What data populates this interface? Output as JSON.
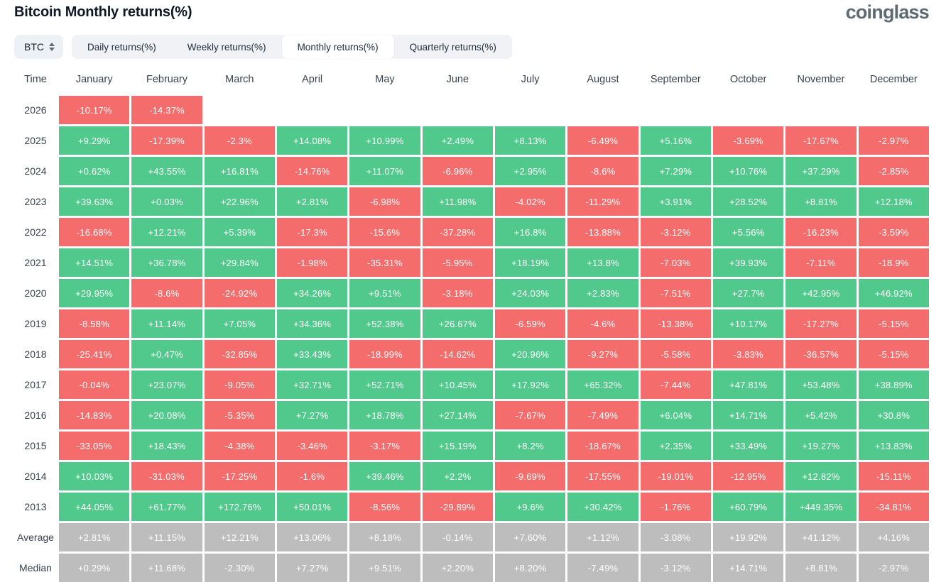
{
  "page": {
    "title": "Bitcoin Monthly returns(%)",
    "logo_text": "coinglass"
  },
  "controls": {
    "symbol_select": {
      "value": "BTC",
      "icon": "sort-arrows-icon"
    },
    "tabs": [
      {
        "label": "Daily returns(%)",
        "active": false
      },
      {
        "label": "Weekly returns(%)",
        "active": false
      },
      {
        "label": "Monthly returns(%)",
        "active": true
      },
      {
        "label": "Quarterly returns(%)",
        "active": false
      }
    ]
  },
  "chart_data": {
    "type": "heatmap",
    "title": "Bitcoin Monthly returns(%)",
    "row_header": "Time",
    "columns": [
      "January",
      "February",
      "March",
      "April",
      "May",
      "June",
      "July",
      "August",
      "September",
      "October",
      "November",
      "December"
    ],
    "rows": [
      {
        "label": "2026",
        "style": "signed",
        "values": [
          "-10.17%",
          "-14.37%",
          null,
          null,
          null,
          null,
          null,
          null,
          null,
          null,
          null,
          null
        ]
      },
      {
        "label": "2025",
        "style": "signed",
        "values": [
          "+9.29%",
          "-17.39%",
          "-2.3%",
          "+14.08%",
          "+10.99%",
          "+2.49%",
          "+8.13%",
          "-6.49%",
          "+5.16%",
          "-3.69%",
          "-17.67%",
          "-2.97%"
        ]
      },
      {
        "label": "2024",
        "style": "signed",
        "values": [
          "+0.62%",
          "+43.55%",
          "+16.81%",
          "-14.76%",
          "+11.07%",
          "-6.96%",
          "+2.95%",
          "-8.6%",
          "+7.29%",
          "+10.76%",
          "+37.29%",
          "-2.85%"
        ]
      },
      {
        "label": "2023",
        "style": "signed",
        "values": [
          "+39.63%",
          "+0.03%",
          "+22.96%",
          "+2.81%",
          "-6.98%",
          "+11.98%",
          "-4.02%",
          "-11.29%",
          "+3.91%",
          "+28.52%",
          "+8.81%",
          "+12.18%"
        ]
      },
      {
        "label": "2022",
        "style": "signed",
        "values": [
          "-16.68%",
          "+12.21%",
          "+5.39%",
          "-17.3%",
          "-15.6%",
          "-37.28%",
          "+16.8%",
          "-13.88%",
          "-3.12%",
          "+5.56%",
          "-16.23%",
          "-3.59%"
        ]
      },
      {
        "label": "2021",
        "style": "signed",
        "values": [
          "+14.51%",
          "+36.78%",
          "+29.84%",
          "-1.98%",
          "-35.31%",
          "-5.95%",
          "+18.19%",
          "+13.8%",
          "-7.03%",
          "+39.93%",
          "-7.11%",
          "-18.9%"
        ]
      },
      {
        "label": "2020",
        "style": "signed",
        "values": [
          "+29.95%",
          "-8.6%",
          "-24.92%",
          "+34.26%",
          "+9.51%",
          "-3.18%",
          "+24.03%",
          "+2.83%",
          "-7.51%",
          "+27.7%",
          "+42.95%",
          "+46.92%"
        ]
      },
      {
        "label": "2019",
        "style": "signed",
        "values": [
          "-8.58%",
          "+11.14%",
          "+7.05%",
          "+34.36%",
          "+52.38%",
          "+26.67%",
          "-6.59%",
          "-4.6%",
          "-13.38%",
          "+10.17%",
          "-17.27%",
          "-5.15%"
        ]
      },
      {
        "label": "2018",
        "style": "signed",
        "values": [
          "-25.41%",
          "+0.47%",
          "-32.85%",
          "+33.43%",
          "-18.99%",
          "-14.62%",
          "+20.96%",
          "-9.27%",
          "-5.58%",
          "-3.83%",
          "-36.57%",
          "-5.15%"
        ]
      },
      {
        "label": "2017",
        "style": "signed",
        "values": [
          "-0.04%",
          "+23.07%",
          "-9.05%",
          "+32.71%",
          "+52.71%",
          "+10.45%",
          "+17.92%",
          "+65.32%",
          "-7.44%",
          "+47.81%",
          "+53.48%",
          "+38.89%"
        ]
      },
      {
        "label": "2016",
        "style": "signed",
        "values": [
          "-14.83%",
          "+20.08%",
          "-5.35%",
          "+7.27%",
          "+18.78%",
          "+27.14%",
          "-7.67%",
          "-7.49%",
          "+6.04%",
          "+14.71%",
          "+5.42%",
          "+30.8%"
        ]
      },
      {
        "label": "2015",
        "style": "signed",
        "values": [
          "-33.05%",
          "+18.43%",
          "-4.38%",
          "-3.46%",
          "-3.17%",
          "+15.19%",
          "+8.2%",
          "-18.67%",
          "+2.35%",
          "+33.49%",
          "+19.27%",
          "+13.83%"
        ]
      },
      {
        "label": "2014",
        "style": "signed",
        "values": [
          "+10.03%",
          "-31.03%",
          "-17.25%",
          "-1.6%",
          "+39.46%",
          "+2.2%",
          "-9.69%",
          "-17.55%",
          "-19.01%",
          "-12.95%",
          "+12.82%",
          "-15.11%"
        ]
      },
      {
        "label": "2013",
        "style": "signed",
        "values": [
          "+44.05%",
          "+61.77%",
          "+172.76%",
          "+50.01%",
          "-8.56%",
          "-29.89%",
          "+9.6%",
          "+30.42%",
          "-1.76%",
          "+60.79%",
          "+449.35%",
          "-34.81%"
        ]
      },
      {
        "label": "Average",
        "style": "gray",
        "values": [
          "+2.81%",
          "+11.15%",
          "+12.21%",
          "+13.06%",
          "+8.18%",
          "-0.14%",
          "+7.60%",
          "+1.12%",
          "-3.08%",
          "+19.92%",
          "+41.12%",
          "+4.16%"
        ]
      },
      {
        "label": "Median",
        "style": "gray",
        "values": [
          "+0.29%",
          "+11.68%",
          "-2.30%",
          "+7.27%",
          "+9.51%",
          "+2.20%",
          "+8.20%",
          "-7.49%",
          "-3.12%",
          "+14.71%",
          "+8.81%",
          "-2.97%"
        ]
      }
    ],
    "colors": {
      "positive": "#52C98C",
      "negative": "#F56C6C",
      "neutral_row": "#BDBDBD",
      "cell_text": "#FFFFFF"
    },
    "layout": {
      "grid": "off",
      "legend": "none",
      "value_format": "signed percent"
    }
  }
}
